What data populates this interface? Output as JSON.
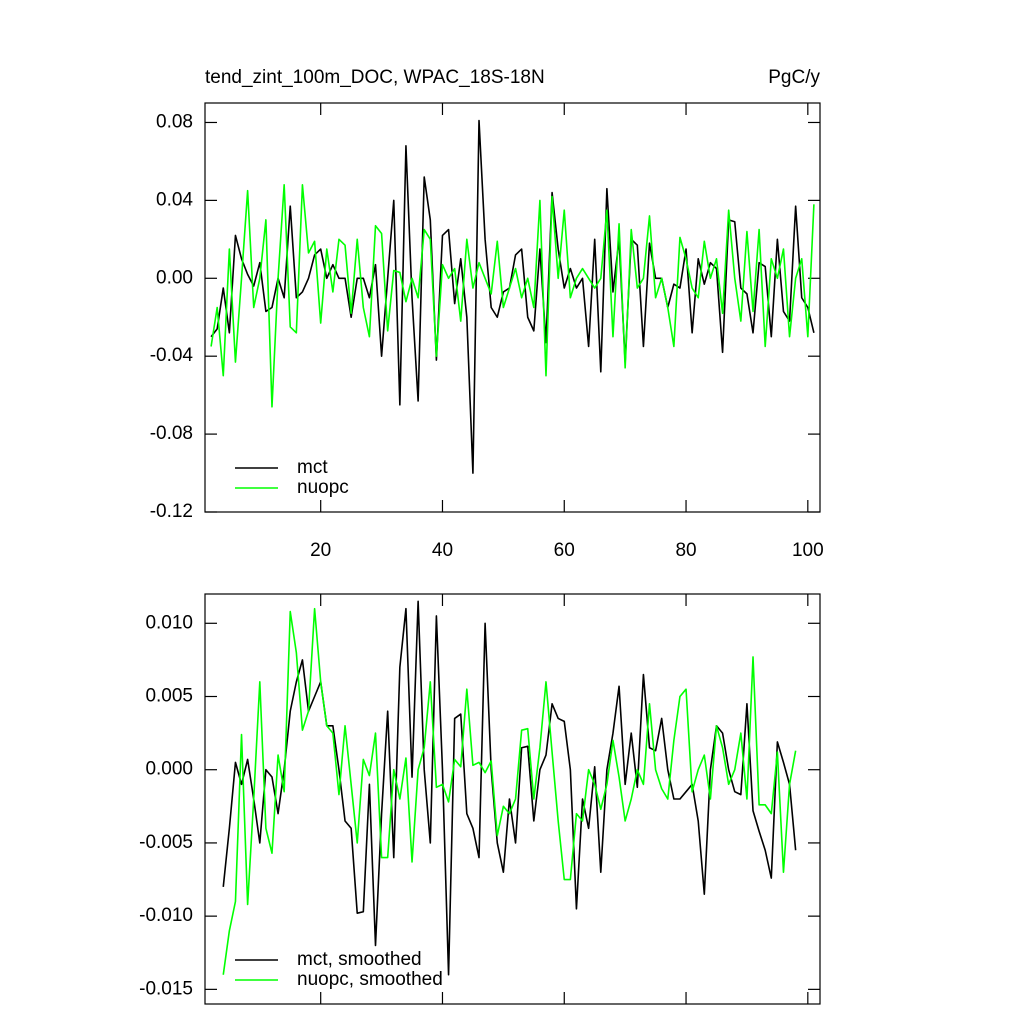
{
  "chart_data": [
    {
      "type": "line",
      "title": "tend_zint_100m_DOC, WPAC_18S-18N",
      "units": "PgC/y",
      "x": [
        2,
        3,
        4,
        5,
        6,
        7,
        8,
        9,
        10,
        11,
        12,
        13,
        14,
        15,
        16,
        17,
        18,
        19,
        20,
        21,
        22,
        23,
        24,
        25,
        26,
        27,
        28,
        29,
        30,
        31,
        32,
        33,
        34,
        35,
        36,
        37,
        38,
        39,
        40,
        41,
        42,
        43,
        44,
        45,
        46,
        47,
        48,
        49,
        50,
        51,
        52,
        53,
        54,
        55,
        56,
        57,
        58,
        59,
        60,
        61,
        62,
        63,
        64,
        65,
        66,
        67,
        68,
        69,
        70,
        71,
        72,
        73,
        74,
        75,
        76,
        77,
        78,
        79,
        80,
        81,
        82,
        83,
        84,
        85,
        86,
        87,
        88,
        89,
        90,
        91,
        92,
        93,
        94,
        95,
        96,
        97,
        98,
        99,
        100,
        101
      ],
      "series": [
        {
          "name": "mct",
          "color": "#000000",
          "values": [
            -0.03,
            -0.026,
            -0.005,
            -0.028,
            0.022,
            0.01,
            0.002,
            -0.004,
            0.008,
            -0.017,
            -0.015,
            0.0,
            -0.01,
            0.037,
            -0.01,
            -0.007,
            0.0,
            0.012,
            0.015,
            0.0,
            0.007,
            0.0,
            0.0,
            -0.02,
            0.0,
            0.0,
            -0.01,
            0.007,
            -0.04,
            0.0,
            0.04,
            -0.065,
            0.068,
            -0.01,
            -0.063,
            0.052,
            0.03,
            -0.042,
            0.022,
            0.025,
            -0.013,
            0.01,
            -0.02,
            -0.1,
            0.081,
            0.02,
            -0.015,
            -0.02,
            -0.007,
            -0.005,
            0.012,
            0.015,
            -0.02,
            -0.027,
            0.015,
            -0.033,
            0.044,
            0.015,
            -0.005,
            0.005,
            -0.005,
            0.0,
            -0.035,
            0.02,
            -0.048,
            0.046,
            -0.007,
            0.02,
            -0.043,
            0.02,
            0.017,
            -0.035,
            0.018,
            0.0,
            0.0,
            -0.015,
            -0.003,
            -0.005,
            0.015,
            -0.028,
            0.01,
            -0.003,
            0.008,
            0.005,
            -0.038,
            0.03,
            0.029,
            -0.005,
            -0.008,
            -0.028,
            0.008,
            0.006,
            -0.03,
            0.02,
            -0.017,
            -0.022,
            0.037,
            -0.01,
            -0.015,
            -0.028
          ]
        },
        {
          "name": "nuopc",
          "color": "#00ff00",
          "values": [
            -0.035,
            -0.015,
            -0.05,
            0.015,
            -0.043,
            0.0,
            0.045,
            -0.015,
            0.0,
            0.03,
            -0.066,
            0.0,
            0.048,
            -0.025,
            -0.028,
            0.048,
            0.013,
            0.019,
            -0.023,
            0.015,
            -0.007,
            0.02,
            0.017,
            -0.018,
            0.02,
            -0.015,
            -0.03,
            0.027,
            0.023,
            -0.027,
            0.004,
            0.003,
            -0.012,
            0.0,
            -0.01,
            0.025,
            0.02,
            -0.04,
            0.007,
            0.0,
            0.005,
            -0.022,
            0.02,
            -0.005,
            0.008,
            0.0,
            -0.008,
            0.019,
            -0.015,
            -0.005,
            0.005,
            -0.01,
            0.0,
            -0.015,
            0.04,
            -0.05,
            0.042,
            0.0,
            0.035,
            -0.01,
            0.0,
            0.005,
            0.0,
            -0.005,
            0.0,
            0.035,
            -0.03,
            0.028,
            -0.046,
            0.025,
            -0.005,
            0.0,
            0.032,
            -0.01,
            0.0,
            -0.015,
            -0.035,
            0.021,
            0.01,
            -0.005,
            -0.01,
            0.019,
            0.0,
            0.01,
            -0.018,
            0.035,
            0.0,
            -0.022,
            0.024,
            -0.017,
            0.025,
            -0.035,
            0.01,
            0.0,
            0.015,
            -0.03,
            0.0,
            0.01,
            -0.03,
            0.038
          ]
        }
      ],
      "xlim": [
        1,
        102
      ],
      "xticks": [
        20,
        40,
        60,
        80,
        100
      ],
      "ylim": [
        -0.12,
        0.09
      ],
      "yticks": [
        -0.12,
        -0.08,
        -0.04,
        {
          "value": 0,
          "label": "0.00"
        },
        0.04,
        0.08
      ],
      "legend": "lower left"
    },
    {
      "type": "line",
      "x": [
        4,
        5,
        6,
        7,
        8,
        9,
        10,
        11,
        12,
        13,
        14,
        15,
        16,
        17,
        18,
        19,
        20,
        21,
        22,
        23,
        24,
        25,
        26,
        27,
        28,
        29,
        30,
        31,
        32,
        33,
        34,
        35,
        36,
        37,
        38,
        39,
        40,
        41,
        42,
        43,
        44,
        45,
        46,
        47,
        48,
        49,
        50,
        51,
        52,
        53,
        54,
        55,
        56,
        57,
        58,
        59,
        60,
        61,
        62,
        63,
        64,
        65,
        66,
        67,
        68,
        69,
        70,
        71,
        72,
        73,
        74,
        75,
        76,
        77,
        78,
        79,
        80,
        81,
        82,
        83,
        84,
        85,
        86,
        87,
        88,
        89,
        90,
        91,
        92,
        93,
        94,
        95,
        96,
        97,
        98
      ],
      "series": [
        {
          "name": "mct, smoothed",
          "color": "#000000",
          "values": [
            -0.008,
            -0.004,
            0.0005,
            -0.001,
            0.0007,
            -0.002,
            -0.005,
            0.0,
            -0.0005,
            -0.003,
            0.0,
            0.004,
            0.006,
            0.0075,
            0.004,
            0.005,
            0.006,
            0.003,
            0.003,
            0.0,
            -0.0035,
            -0.004,
            -0.0098,
            -0.0097,
            -0.001,
            -0.012,
            -0.003,
            0.004,
            -0.006,
            0.007,
            0.011,
            -0.0005,
            0.0115,
            0.0,
            -0.005,
            0.0105,
            0.0,
            -0.014,
            0.0035,
            0.0038,
            -0.003,
            -0.004,
            -0.006,
            0.01,
            0.0,
            -0.005,
            -0.007,
            -0.002,
            -0.005,
            0.0015,
            0.0016,
            -0.0035,
            0.0,
            0.001,
            0.0045,
            0.0035,
            0.0033,
            0.0,
            -0.0095,
            -0.002,
            -0.004,
            0.0002,
            -0.007,
            0.0,
            0.0025,
            0.0057,
            -0.001,
            0.0025,
            -0.0012,
            0.0065,
            0.0015,
            0.0013,
            0.0035,
            0.0,
            -0.002,
            -0.002,
            -0.0015,
            -0.001,
            -0.0035,
            -0.0085,
            0.0,
            0.003,
            0.0025,
            0.0,
            -0.0015,
            -0.0017,
            0.0045,
            -0.0028,
            -0.0042,
            -0.0055,
            -0.0074,
            0.0019,
            0.0005,
            -0.001,
            -0.0055
          ]
        },
        {
          "name": "nuopc, smoothed",
          "color": "#00ff00",
          "values": [
            -0.014,
            -0.011,
            -0.009,
            0.0024,
            -0.0092,
            -0.002,
            0.006,
            -0.004,
            -0.0057,
            0.001,
            -0.0015,
            0.0108,
            0.008,
            0.0027,
            0.004,
            0.011,
            0.006,
            0.003,
            0.0025,
            -0.0017,
            0.003,
            -0.001,
            -0.005,
            0.0007,
            -0.0004,
            0.0025,
            -0.006,
            -0.006,
            0.0,
            -0.002,
            0.0008,
            -0.0063,
            0.0,
            0.0015,
            0.006,
            -0.0012,
            -0.001,
            -0.0022,
            0.0007,
            0.0002,
            0.0055,
            0.0003,
            0.0005,
            -0.0002,
            0.0006,
            -0.0045,
            -0.0025,
            -0.003,
            -0.002,
            0.0027,
            0.0028,
            -0.002,
            0.0015,
            0.006,
            0.0012,
            -0.0035,
            -0.0075,
            -0.0075,
            -0.003,
            -0.0035,
            0.0,
            -0.001,
            -0.0027,
            -0.001,
            0.002,
            -0.0005,
            -0.0035,
            -0.002,
            0.0,
            -0.001,
            0.0045,
            0.0,
            -0.0013,
            -0.002,
            0.002,
            0.005,
            0.0055,
            -0.0015,
            0.0,
            0.001,
            -0.002,
            0.003,
            0.0015,
            -0.001,
            0.0,
            0.0025,
            -0.002,
            0.0077,
            -0.0024,
            -0.0024,
            -0.003,
            0.0012,
            -0.007,
            -0.001,
            0.0013
          ]
        }
      ],
      "xlim": [
        1,
        102
      ],
      "xticks": [
        20,
        40,
        60,
        80,
        100
      ],
      "ylim": [
        -0.016,
        0.012
      ],
      "yticks": [
        -0.015,
        {
          "value": -0.01,
          "label": "-0.010"
        },
        -0.005,
        {
          "value": 0,
          "label": "0.000"
        },
        0.005,
        {
          "value": 0.01,
          "label": "0.010"
        }
      ],
      "legend": "lower left"
    }
  ]
}
